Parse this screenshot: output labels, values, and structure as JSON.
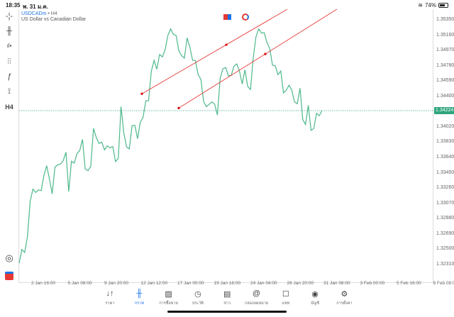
{
  "status": {
    "time": "18:35",
    "date": "พ. 31 ม.ค.",
    "battery": "74%",
    "battery_level": 74
  },
  "symbol": {
    "name": "USDCADm",
    "timeframe": "H4",
    "description": "US Dollar vs Canadian Dollar",
    "separator": "•"
  },
  "toolbar": {
    "items": [
      {
        "name": "crosshair-icon",
        "glyph": "-¦-"
      },
      {
        "name": "chart-type-icon",
        "glyph": "╫"
      },
      {
        "name": "indicators-icon",
        "glyph": "ıl▪"
      },
      {
        "name": "settings-sliders-icon",
        "glyph": "⫶⫶"
      },
      {
        "name": "functions-icon",
        "glyph": "ƒ"
      },
      {
        "name": "objects-icon",
        "glyph": "⟟"
      },
      {
        "name": "timeframe-button",
        "glyph": "H4"
      }
    ]
  },
  "price_axis": {
    "labels": [
      "1.35350",
      "1.35160",
      "1.34970",
      "1.34780",
      "1.34590",
      "1.34400",
      "1.34020",
      "1.33830",
      "1.33640",
      "1.33450",
      "1.33260",
      "1.33070",
      "1.32880",
      "1.32690",
      "1.32500",
      "1.32310"
    ],
    "current": "1.34224"
  },
  "chart_data": {
    "type": "line",
    "ylim": [
      1.3231,
      1.3535
    ],
    "color": "#4cb88a",
    "trendline_color": "#e53935",
    "x_ticks": [
      "2 Jan 16:00",
      "5 Jan 08:00",
      "9 Jan 20:00",
      "12 Jan 12:00",
      "17 Jan 00:00",
      "19 Jan 16:00",
      "24 Jan 04:00",
      "26 Jan 20:00",
      "31 Jan 08:00",
      "3 Feb 00:00",
      "5 Feb 16:00",
      "8 Feb 08:00"
    ],
    "values": [
      1.32327,
      1.32497,
      1.32459,
      1.32654,
      1.33096,
      1.33246,
      1.33205,
      1.33237,
      1.33228,
      1.33417,
      1.33538,
      1.33372,
      1.33187,
      1.3352,
      1.33549,
      1.33558,
      1.336,
      1.33706,
      1.33217,
      1.33593,
      1.3357,
      1.33688,
      1.33726,
      1.33865,
      1.33496,
      1.33476,
      1.33529,
      1.34,
      1.33889,
      1.33814,
      1.3383,
      1.33735,
      1.33785,
      1.33761,
      1.33776,
      1.33588,
      1.33629,
      1.34272,
      1.33947,
      1.3377,
      1.33747,
      1.34035,
      1.34042,
      1.33874,
      1.3408,
      1.34139,
      1.34345,
      1.34345,
      1.34714,
      1.34846,
      1.34737,
      1.3492,
      1.3489,
      1.34979,
      1.35156,
      1.35238,
      1.35171,
      1.35156,
      1.34964,
      1.34905,
      1.34875,
      1.35126,
      1.35008,
      1.34846,
      1.34846,
      1.34669,
      1.3461,
      1.34331,
      1.34272,
      1.34301,
      1.34331,
      1.34301,
      1.34168,
      1.34625,
      1.34743,
      1.34758,
      1.34654,
      1.3466,
      1.34773,
      1.34802,
      1.34714,
      1.34552,
      1.34729,
      1.34522,
      1.34484,
      1.34875,
      1.3514,
      1.35238,
      1.35185,
      1.35191,
      1.35067,
      1.34994,
      1.34787,
      1.34778,
      1.34669,
      1.34714,
      1.34442,
      1.34477,
      1.34537,
      1.34477,
      1.34331,
      1.34307,
      1.34501,
      1.3411,
      1.3405,
      1.34287,
      1.33977,
      1.34,
      1.34189,
      1.34159,
      1.34224
    ],
    "trendlines": [
      {
        "anchors": [
          1.34431,
          1.35041
        ]
      },
      {
        "anchors": [
          1.34254,
          1.34926
        ]
      }
    ]
  },
  "nav": {
    "items": [
      {
        "label": "ราคา",
        "glyph": "↓↑",
        "name": "quotes"
      },
      {
        "label": "กราฟ",
        "glyph": "╫",
        "name": "chart",
        "active": true
      },
      {
        "label": "การซื้อขาย",
        "glyph": "▨",
        "name": "trade"
      },
      {
        "label": "ประวัติ",
        "glyph": "◷",
        "name": "history"
      },
      {
        "label": "ข่าว",
        "glyph": "▤",
        "name": "news"
      },
      {
        "label": "กล่องจดหมาย",
        "glyph": "@",
        "name": "mailbox"
      },
      {
        "label": "แชท",
        "glyph": "☐",
        "name": "chat"
      },
      {
        "label": "บัญชี",
        "glyph": "◉",
        "name": "account"
      },
      {
        "label": "การตั้งค่า",
        "glyph": "⚙",
        "name": "settings"
      }
    ]
  }
}
